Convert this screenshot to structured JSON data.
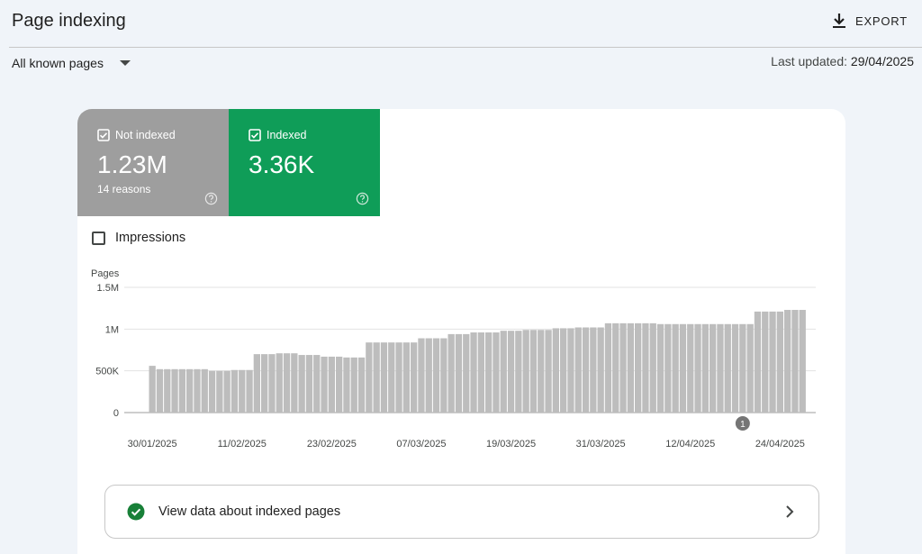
{
  "header": {
    "title": "Page indexing",
    "export_label": "EXPORT"
  },
  "filter": {
    "selected": "All known pages"
  },
  "last_updated": {
    "label": "Last updated:",
    "value": "29/04/2025"
  },
  "tiles": {
    "not_indexed": {
      "label": "Not indexed",
      "value": "1.23M",
      "sub": "14 reasons",
      "color": "#9e9e9e"
    },
    "indexed": {
      "label": "Indexed",
      "value": "3.36K",
      "color": "#0f9d58"
    }
  },
  "impressions_label": "Impressions",
  "chart_data": {
    "type": "bar",
    "ylabel": "Pages",
    "y_ticks": [
      0,
      500000,
      1000000,
      1500000
    ],
    "y_tick_labels": [
      "0",
      "500K",
      "1M",
      "1.5M"
    ],
    "ylim": [
      0,
      1500000
    ],
    "grid": true,
    "bar_color": "#bdbdbd",
    "x_tick_labels": [
      "30/01/2025",
      "11/02/2025",
      "23/02/2025",
      "07/03/2025",
      "19/03/2025",
      "31/03/2025",
      "12/04/2025",
      "24/04/2025"
    ],
    "x_tick_indices": [
      0,
      12,
      24,
      36,
      48,
      60,
      72,
      84
    ],
    "annotation": {
      "label": "1",
      "index": 79
    },
    "values": [
      560000,
      520000,
      520000,
      520000,
      520000,
      520000,
      520000,
      520000,
      500000,
      500000,
      500000,
      510000,
      510000,
      510000,
      700000,
      700000,
      700000,
      710000,
      710000,
      710000,
      690000,
      690000,
      690000,
      670000,
      670000,
      670000,
      660000,
      660000,
      660000,
      840000,
      840000,
      840000,
      840000,
      840000,
      840000,
      840000,
      890000,
      890000,
      890000,
      890000,
      940000,
      940000,
      940000,
      960000,
      960000,
      960000,
      960000,
      980000,
      980000,
      980000,
      990000,
      990000,
      990000,
      990000,
      1010000,
      1010000,
      1010000,
      1020000,
      1020000,
      1020000,
      1020000,
      1070000,
      1070000,
      1070000,
      1070000,
      1070000,
      1070000,
      1070000,
      1060000,
      1060000,
      1060000,
      1060000,
      1060000,
      1060000,
      1060000,
      1060000,
      1060000,
      1060000,
      1060000,
      1060000,
      1060000,
      1210000,
      1210000,
      1210000,
      1210000,
      1230000,
      1230000,
      1230000
    ]
  },
  "bottom_link": {
    "label": "View data about indexed pages"
  }
}
